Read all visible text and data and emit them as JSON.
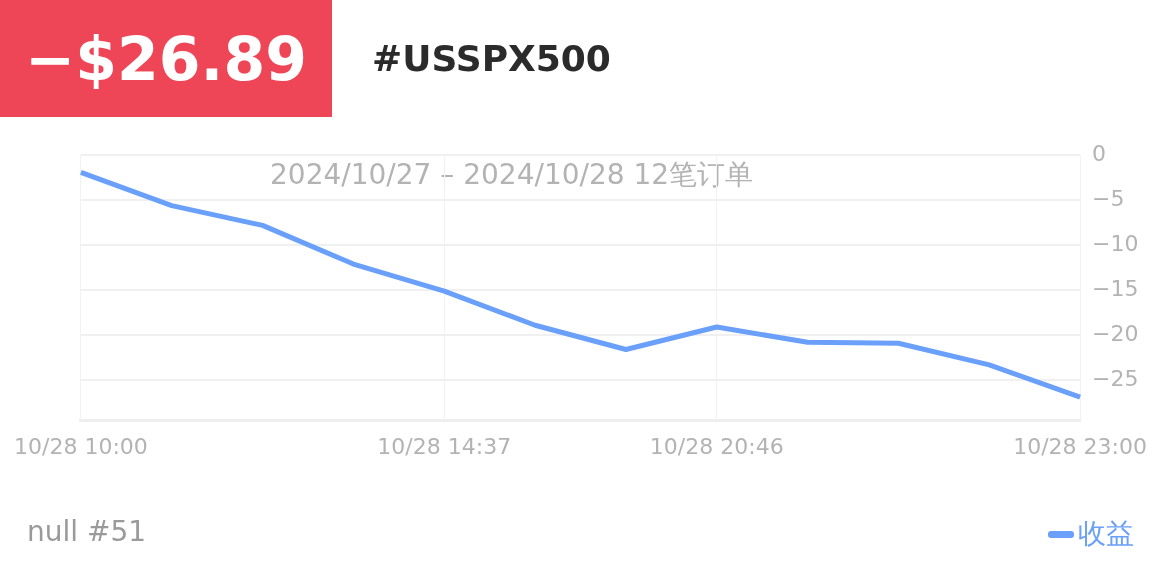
{
  "chart_data": {
    "type": "line",
    "title": "#USSPX500",
    "subtitle": "2024/10/27 – 2024/10/28  12笔订单",
    "annotations": [
      "−$26.89",
      "null #51"
    ],
    "categories": [
      "10/28 10:00",
      null,
      null,
      null,
      "10/28 14:37",
      null,
      null,
      "10/28 20:46",
      null,
      null,
      null,
      "10/28 23:00"
    ],
    "series": [
      {
        "name": "收益",
        "color": "#6aa0fa",
        "values": [
          -1.9,
          -5.6,
          -7.8,
          -12.1,
          -15.1,
          -18.9,
          -21.6,
          -19.1,
          -20.8,
          -20.9,
          -23.3,
          -26.9
        ]
      }
    ],
    "ylim": [
      -29.5,
      0
    ],
    "yticks": [
      0,
      -5,
      -10,
      -15,
      -20,
      -25
    ],
    "grid": true,
    "legend": "bottom right"
  }
}
